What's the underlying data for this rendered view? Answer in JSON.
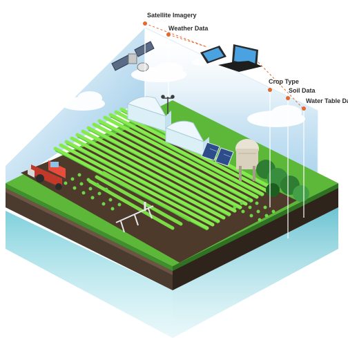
{
  "labels": {
    "satellite_imagery": "Satellite Imagery",
    "weather_data": "Weather Data",
    "crop_type": "Crop Type",
    "soil_data": "Soil Data",
    "water_table_data": "Water Table Data"
  },
  "colors": {
    "accent": "#e8672a",
    "grass": "#5db83a",
    "crop": "#7ee34a",
    "soil": "#4a3a30",
    "water": "#8ad6e0",
    "sky": "#b9dcf0"
  },
  "icons": [
    "satellite-icon",
    "weather-station-icon",
    "tablet-icon",
    "laptop-icon",
    "greenhouse-icon",
    "solar-panel-icon",
    "silo-icon",
    "tractor-icon",
    "irrigation-pivot-icon",
    "tree-icon"
  ]
}
